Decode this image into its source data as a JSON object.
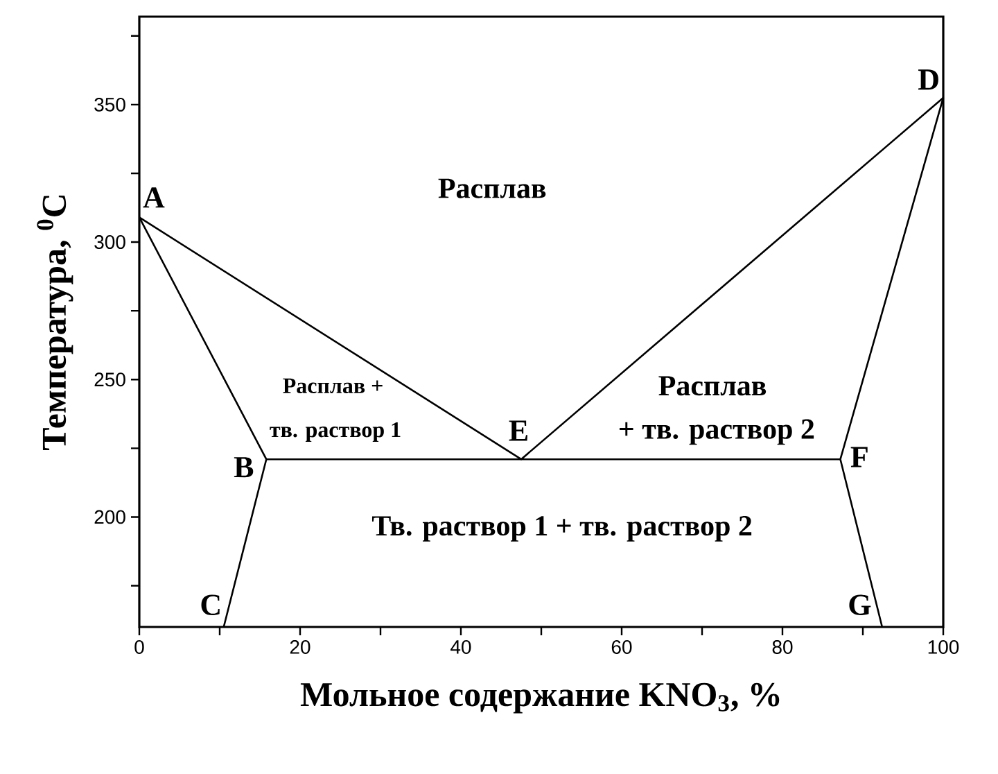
{
  "chart_data": {
    "type": "line",
    "xlabel": "Мольное содержание KNO$_{3}$, %",
    "ylabel": "Температура, $^{0}$C",
    "xlim": [
      0,
      100
    ],
    "ylim": [
      160,
      382
    ],
    "xticks": [
      0,
      {
        "value": 10,
        "label": null
      },
      20,
      {
        "value": 30,
        "label": null
      },
      40,
      {
        "value": 50,
        "label": null
      },
      60,
      {
        "value": 70,
        "label": null
      },
      80,
      {
        "value": 90,
        "label": null
      },
      100
    ],
    "yticks": [
      {
        "value": 175,
        "label": null
      },
      200,
      {
        "value": 225,
        "label": null
      },
      250,
      {
        "value": 275,
        "label": null
      },
      300,
      {
        "value": 325,
        "label": null
      },
      350,
      {
        "value": 375,
        "label": null
      }
    ],
    "marker": "none",
    "line_style": "solid",
    "series": [
      {
        "color": "#000000",
        "x": [
          0,
          47.5,
          100
        ],
        "values": [
          309,
          221,
          352.5
        ]
      },
      {
        "color": "#000000",
        "x": [
          0,
          15.8,
          10.5
        ],
        "values": [
          309,
          221,
          160
        ]
      },
      {
        "color": "#000000",
        "x": [
          100,
          87.2,
          92.4
        ],
        "values": [
          352.5,
          221,
          160
        ]
      },
      {
        "color": "#000000",
        "x": [
          15.8,
          87.2
        ],
        "values": [
          221,
          221
        ]
      }
    ],
    "annotations": [
      "A",
      "B",
      "C",
      "D",
      "E",
      "F",
      "G",
      "Расплав",
      "Расплав +",
      "тв. раствор 1",
      "Расплав",
      "+ тв. раствор 2",
      "Тв. раствор 1 + тв. раствор 2"
    ]
  }
}
